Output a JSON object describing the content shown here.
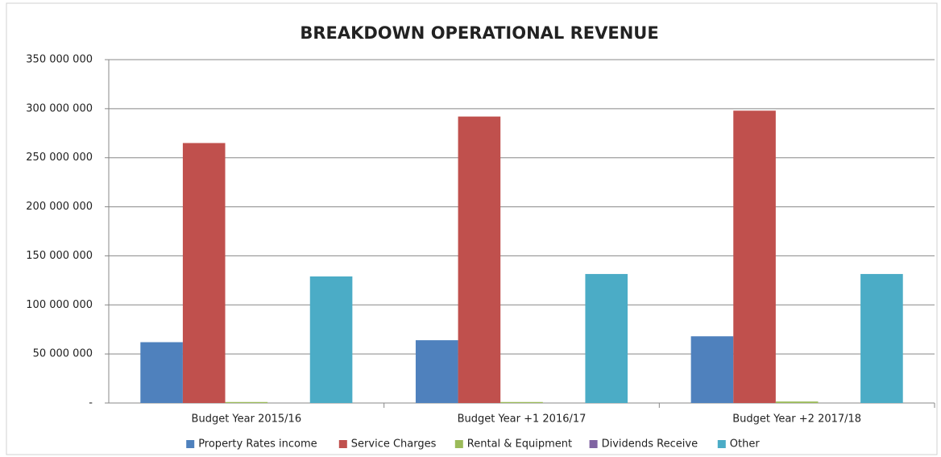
{
  "chart_data": {
    "type": "bar",
    "title": "BREAKDOWN OPERATIONAL REVENUE",
    "categories": [
      "Budget Year 2015/16",
      "Budget Year +1 2016/17",
      "Budget Year +2 2017/18"
    ],
    "series": [
      {
        "name": "Property Rates income",
        "color": "#4f81bd",
        "values": [
          62000000,
          64000000,
          68000000
        ]
      },
      {
        "name": "Service Charges",
        "color": "#c0504d",
        "values": [
          265000000,
          292000000,
          298000000
        ]
      },
      {
        "name": "Rental & Equipment",
        "color": "#9bbb59",
        "values": [
          1000000,
          1000000,
          1500000
        ]
      },
      {
        "name": "Dividends Receive",
        "color": "#8064a2",
        "values": [
          0,
          0,
          0
        ]
      },
      {
        "name": "Other",
        "color": "#4bacc6",
        "values": [
          129000000,
          131500000,
          131500000
        ]
      }
    ],
    "ylim": [
      0,
      350000000
    ],
    "yticks": [
      {
        "value": 0,
        "label": "-"
      },
      {
        "value": 50000000,
        "label": "50 000 000"
      },
      {
        "value": 100000000,
        "label": "100 000 000"
      },
      {
        "value": 150000000,
        "label": "150 000 000"
      },
      {
        "value": 200000000,
        "label": "200 000 000"
      },
      {
        "value": 250000000,
        "label": "250 000 000"
      },
      {
        "value": 300000000,
        "label": "300 000 000"
      },
      {
        "value": 350000000,
        "label": "350 000 000"
      }
    ],
    "grid": true,
    "legend": "bottom"
  }
}
